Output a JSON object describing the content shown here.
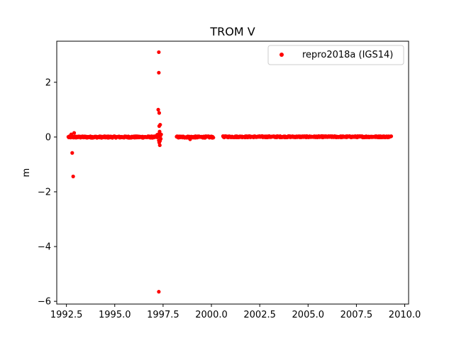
{
  "chart_data": {
    "type": "scatter",
    "title": "TROM V",
    "xlabel": "",
    "ylabel": "m",
    "xlim": [
      1992.0,
      2010.2
    ],
    "ylim": [
      -6.1,
      3.5
    ],
    "xticks": [
      1992.5,
      1995.0,
      1997.5,
      2000.0,
      2002.5,
      2005.0,
      2007.5,
      2010.0
    ],
    "xtick_labels": [
      "1992.5",
      "1995.0",
      "1997.5",
      "2000.0",
      "2002.5",
      "2005.0",
      "2007.5",
      "2010.0"
    ],
    "yticks": [
      -6,
      -4,
      -2,
      0,
      2
    ],
    "ytick_labels": [
      "−6",
      "−4",
      "−2",
      "0",
      "2"
    ],
    "grid": false,
    "legend_position": "top-right",
    "series": [
      {
        "name": "repro2018a (IGS14)",
        "color": "#ff0000",
        "marker": "circle",
        "segments": [
          {
            "x_start": 1992.6,
            "x_end": 1997.2,
            "y_center": 0.0,
            "y_noise": 0.03
          },
          {
            "x_start": 1997.2,
            "x_end": 1997.4,
            "y_center": 0.0,
            "y_noise": 0.15
          },
          {
            "x_start": 1998.2,
            "x_end": 2000.1,
            "y_center": 0.0,
            "y_noise": 0.03
          },
          {
            "x_start": 2000.6,
            "x_end": 2009.3,
            "y_center": 0.01,
            "y_noise": 0.025
          }
        ],
        "points": [
          {
            "x": 1992.8,
            "y": -0.58
          },
          {
            "x": 1992.85,
            "y": -1.44
          },
          {
            "x": 1992.9,
            "y": 0.15
          },
          {
            "x": 1992.75,
            "y": 0.1
          },
          {
            "x": 1997.28,
            "y": 3.1
          },
          {
            "x": 1997.28,
            "y": 2.35
          },
          {
            "x": 1997.25,
            "y": 1.0
          },
          {
            "x": 1997.3,
            "y": 0.88
          },
          {
            "x": 1997.35,
            "y": 0.45
          },
          {
            "x": 1997.3,
            "y": 0.4
          },
          {
            "x": 1997.32,
            "y": 0.2
          },
          {
            "x": 1997.3,
            "y": -0.2
          },
          {
            "x": 1997.33,
            "y": -0.3
          },
          {
            "x": 1997.28,
            "y": -5.65
          },
          {
            "x": 1998.9,
            "y": -0.08
          }
        ]
      }
    ]
  }
}
